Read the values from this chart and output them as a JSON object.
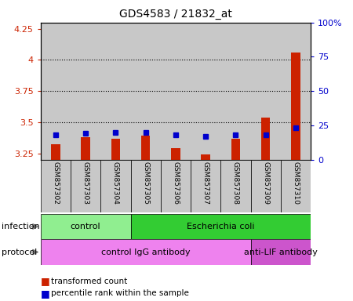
{
  "title": "GDS4583 / 21832_at",
  "samples": [
    "GSM857302",
    "GSM857303",
    "GSM857304",
    "GSM857305",
    "GSM857306",
    "GSM857307",
    "GSM857308",
    "GSM857309",
    "GSM857310"
  ],
  "transformed_counts": [
    3.32,
    3.38,
    3.37,
    3.39,
    3.29,
    3.24,
    3.37,
    3.54,
    4.06
  ],
  "percentile_ranks": [
    18,
    19,
    20,
    20,
    18,
    17,
    18,
    18,
    23
  ],
  "ylim_left": [
    3.2,
    4.3
  ],
  "ylim_right": [
    0,
    100
  ],
  "yticks_left": [
    3.25,
    3.5,
    3.75,
    4.0,
    4.25
  ],
  "yticks_right": [
    0,
    25,
    50,
    75,
    100
  ],
  "ytick_labels_left": [
    "3.25",
    "3.5",
    "3.75",
    "4",
    "4.25"
  ],
  "ytick_labels_right": [
    "0",
    "25",
    "50",
    "75",
    "100%"
  ],
  "infection_groups": [
    {
      "label": "control",
      "start": 0,
      "end": 3,
      "color": "#90EE90"
    },
    {
      "label": "Escherichia coli",
      "start": 3,
      "end": 9,
      "color": "#33CC33"
    }
  ],
  "protocol_groups": [
    {
      "label": "control IgG antibody",
      "start": 0,
      "end": 7,
      "color": "#EE82EE"
    },
    {
      "label": "anti-LIF antibody",
      "start": 7,
      "end": 9,
      "color": "#CC55CC"
    }
  ],
  "bar_color": "#CC2200",
  "dot_color": "#0000CC",
  "sample_bg_color": "#C8C8C8",
  "left_axis_color": "#CC2200",
  "right_axis_color": "#0000CC",
  "bar_width": 0.3,
  "dot_size": 5
}
